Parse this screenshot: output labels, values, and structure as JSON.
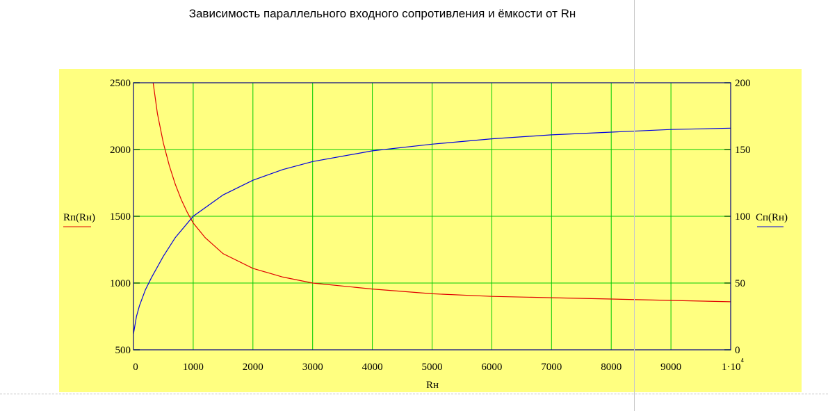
{
  "title": "Зависимость параллельного входного сопротивления и ёмкости от Rн",
  "chart_data": {
    "type": "line",
    "xlabel": "Rн",
    "ylabel_left": "Rп(Rн)",
    "ylabel_right": "Сп(Rн)",
    "xlim": [
      0,
      10000
    ],
    "ylim_left": [
      500,
      2500
    ],
    "ylim_right": [
      0,
      200
    ],
    "x_ticks": [
      "0",
      "1000",
      "2000",
      "3000",
      "4000",
      "5000",
      "6000",
      "7000",
      "8000",
      "9000",
      "1·10⁴"
    ],
    "y_left_ticks": [
      "500",
      "1000",
      "1500",
      "2000",
      "2500"
    ],
    "y_right_ticks": [
      "0",
      "50",
      "100",
      "150",
      "200"
    ],
    "grid": true,
    "series": [
      {
        "name": "Rп(Rн)",
        "axis": "left",
        "color": "#e00000",
        "x": [
          330,
          400,
          500,
          600,
          700,
          800,
          900,
          1000,
          1200,
          1500,
          2000,
          2500,
          3000,
          4000,
          5000,
          6000,
          7000,
          8000,
          9000,
          10000
        ],
        "y": [
          2500,
          2270,
          2050,
          1880,
          1740,
          1625,
          1530,
          1450,
          1340,
          1220,
          1110,
          1045,
          1000,
          955,
          920,
          900,
          890,
          880,
          870,
          860
        ]
      },
      {
        "name": "Сп(Rн)",
        "axis": "right",
        "color": "#0000e0",
        "x": [
          0,
          50,
          100,
          200,
          300,
          500,
          700,
          1000,
          1500,
          2000,
          2500,
          3000,
          4000,
          5000,
          6000,
          7000,
          8000,
          9000,
          10000
        ],
        "y": [
          12,
          25,
          33,
          45,
          54,
          70,
          84,
          100,
          116,
          127,
          135,
          141,
          149,
          154,
          158,
          161,
          163,
          165,
          166
        ]
      }
    ]
  }
}
